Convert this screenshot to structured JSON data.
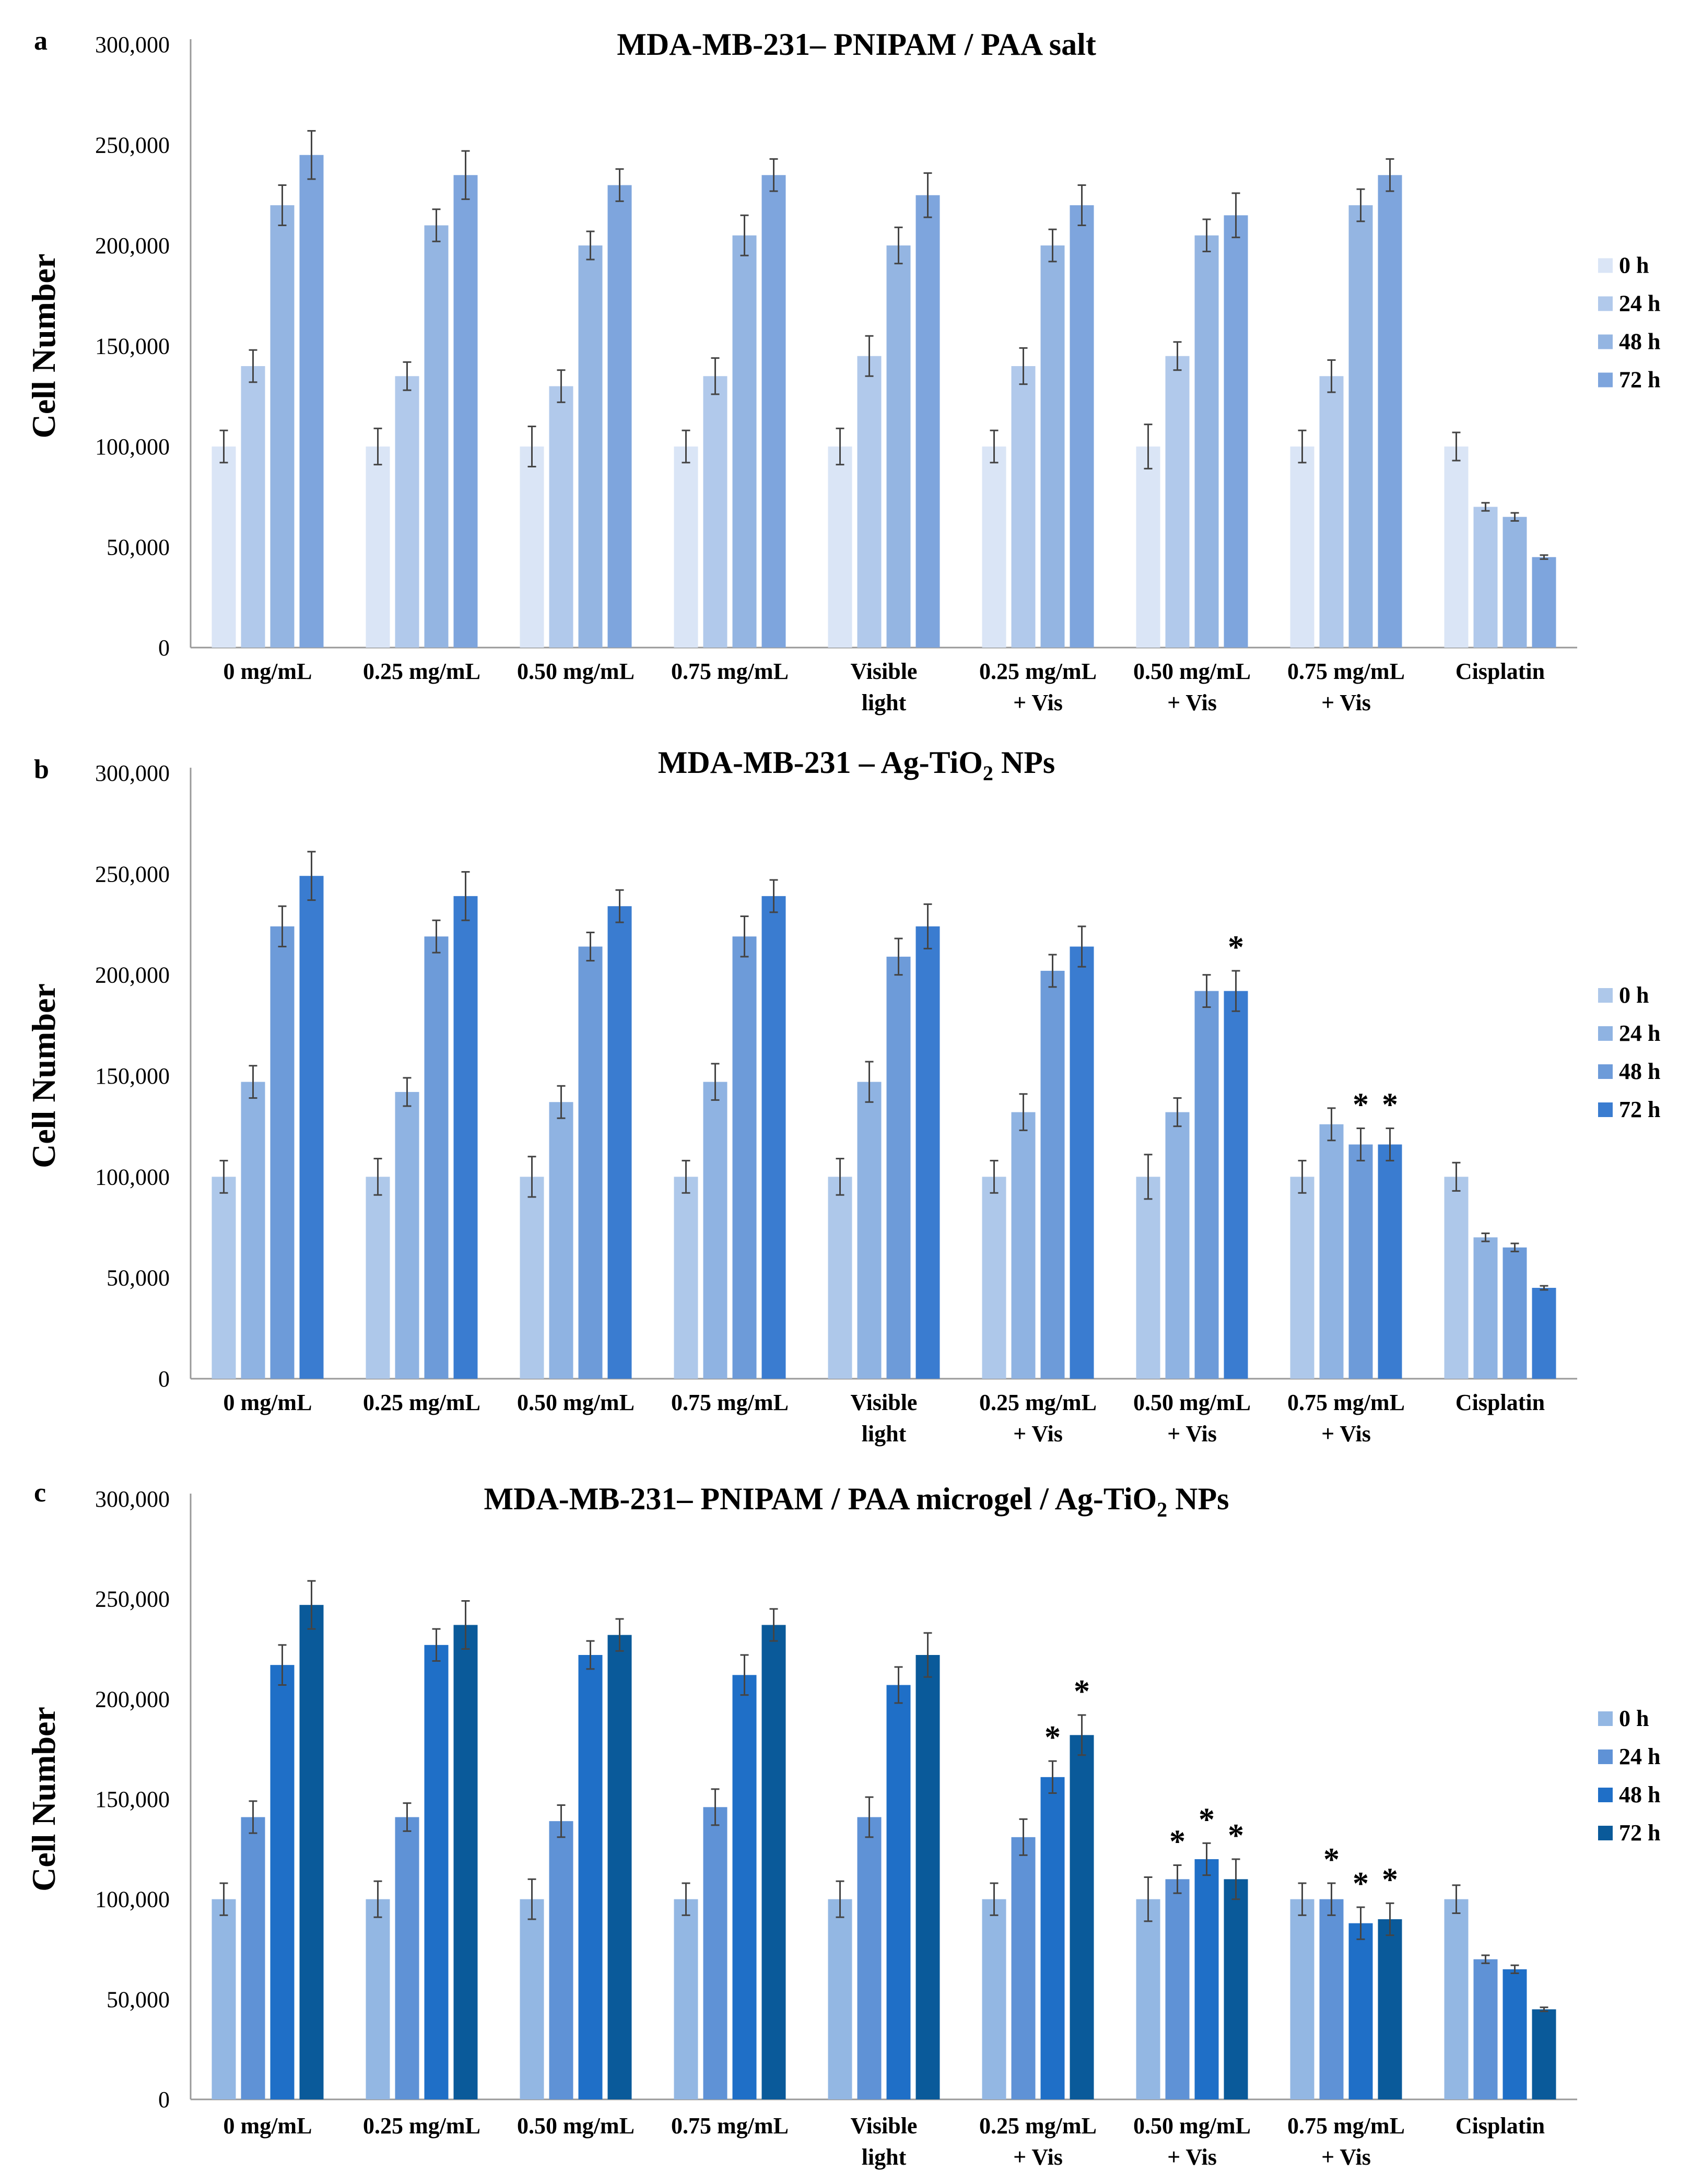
{
  "figure": {
    "panels": [
      {
        "letter": "a",
        "title_main": "MDA-MB-231– PNIPAM / PAA salt",
        "title_sub": "",
        "title_post": "",
        "ylabel": "Cell Number",
        "legend": [
          "0 h",
          "24 h",
          "48 h",
          "72 h"
        ],
        "colors": {
          "series": [
            "#dae5f6",
            "#b1c9eb",
            "#94b5e2",
            "#7ea5dd"
          ],
          "error": "#444444",
          "axis": "#999999"
        }
      },
      {
        "letter": "b",
        "title_main": "MDA-MB-231 – Ag-TiO",
        "title_sub": "2",
        "title_post": " NPs",
        "ylabel": "Cell Number",
        "legend": [
          "0 h",
          "24 h",
          "48 h",
          "72 h"
        ],
        "colors": {
          "series": [
            "#aec8ea",
            "#8fb3e2",
            "#6d9bd9",
            "#3a7cd0"
          ],
          "error": "#444444",
          "axis": "#999999"
        }
      },
      {
        "letter": "c",
        "title_main": "MDA-MB-231– PNIPAM / PAA microgel / Ag-TiO",
        "title_sub": "2",
        "title_post": " NPs",
        "ylabel": "Cell Number",
        "legend": [
          "0 h",
          "24 h",
          "48 h",
          "72 h"
        ],
        "colors": {
          "series": [
            "#93b7e3",
            "#5f92d6",
            "#1f6fc7",
            "#0a5a9a"
          ],
          "error": "#444444",
          "axis": "#999999"
        }
      }
    ]
  },
  "chart_data": [
    {
      "type": "bar",
      "title": "MDA-MB-231– PNIPAM / PAA salt",
      "xlabel": "",
      "ylabel": "Cell Number",
      "ylim": [
        0,
        300000
      ],
      "yticks": [
        "0",
        "50,000",
        "100,000",
        "150,000",
        "200,000",
        "250,000",
        "300,000"
      ],
      "categories": [
        [
          "0 mg/mL"
        ],
        [
          "0.25 mg/mL"
        ],
        [
          "0.50 mg/mL"
        ],
        [
          "0.75 mg/mL"
        ],
        [
          "Visible",
          "light"
        ],
        [
          "0.25 mg/mL",
          "+ Vis"
        ],
        [
          "0.50 mg/mL",
          "+ Vis"
        ],
        [
          "0.75 mg/mL",
          "+ Vis"
        ],
        [
          "Cisplatin"
        ]
      ],
      "series": [
        {
          "name": "0 h",
          "values": [
            100000,
            100000,
            100000,
            100000,
            100000,
            100000,
            100000,
            100000,
            100000
          ],
          "errors": [
            8000,
            9000,
            10000,
            8000,
            9000,
            8000,
            11000,
            8000,
            7000
          ]
        },
        {
          "name": "24 h",
          "values": [
            140000,
            135000,
            130000,
            135000,
            145000,
            140000,
            145000,
            135000,
            70000
          ],
          "errors": [
            8000,
            7000,
            8000,
            9000,
            10000,
            9000,
            7000,
            8000,
            2000
          ]
        },
        {
          "name": "48 h",
          "values": [
            220000,
            210000,
            200000,
            205000,
            200000,
            200000,
            205000,
            220000,
            65000
          ],
          "errors": [
            10000,
            8000,
            7000,
            10000,
            9000,
            8000,
            8000,
            8000,
            2000
          ]
        },
        {
          "name": "72 h",
          "values": [
            245000,
            235000,
            230000,
            235000,
            225000,
            220000,
            215000,
            235000,
            45000
          ],
          "errors": [
            12000,
            12000,
            8000,
            8000,
            11000,
            10000,
            11000,
            8000,
            1000
          ]
        }
      ],
      "significance": [
        [],
        [],
        [],
        [],
        [],
        [],
        [],
        [],
        []
      ],
      "legend_position": "right"
    },
    {
      "type": "bar",
      "title": "MDA-MB-231 – Ag-TiO2 NPs",
      "xlabel": "",
      "ylabel": "Cell Number",
      "ylim": [
        0,
        300000
      ],
      "yticks": [
        "0",
        "50,000",
        "100,000",
        "150,000",
        "200,000",
        "250,000",
        "300,000"
      ],
      "categories": [
        [
          "0 mg/mL"
        ],
        [
          "0.25 mg/mL"
        ],
        [
          "0.50 mg/mL"
        ],
        [
          "0.75 mg/mL"
        ],
        [
          "Visible",
          "light"
        ],
        [
          "0.25 mg/mL",
          "+ Vis"
        ],
        [
          "0.50 mg/mL",
          "+ Vis"
        ],
        [
          "0.75 mg/mL",
          "+ Vis"
        ],
        [
          "Cisplatin"
        ]
      ],
      "series": [
        {
          "name": "0 h",
          "values": [
            100000,
            100000,
            100000,
            100000,
            100000,
            100000,
            100000,
            100000,
            100000
          ],
          "errors": [
            8000,
            9000,
            10000,
            8000,
            9000,
            8000,
            11000,
            8000,
            7000
          ]
        },
        {
          "name": "24 h",
          "values": [
            147000,
            142000,
            137000,
            147000,
            147000,
            132000,
            132000,
            126000,
            70000
          ],
          "errors": [
            8000,
            7000,
            8000,
            9000,
            10000,
            9000,
            7000,
            8000,
            2000
          ]
        },
        {
          "name": "48 h",
          "values": [
            224000,
            219000,
            214000,
            219000,
            209000,
            202000,
            192000,
            116000,
            65000
          ],
          "errors": [
            10000,
            8000,
            7000,
            10000,
            9000,
            8000,
            8000,
            8000,
            2000
          ]
        },
        {
          "name": "72 h",
          "values": [
            249000,
            239000,
            234000,
            239000,
            224000,
            214000,
            192000,
            116000,
            45000
          ],
          "errors": [
            12000,
            12000,
            8000,
            8000,
            11000,
            10000,
            10000,
            8000,
            1000
          ]
        }
      ],
      "significance": [
        [],
        [],
        [],
        [],
        [],
        [],
        [
          3
        ],
        [
          2,
          3
        ],
        []
      ],
      "legend_position": "right"
    },
    {
      "type": "bar",
      "title": "MDA-MB-231– PNIPAM / PAA microgel / Ag-TiO2 NPs",
      "xlabel": "",
      "ylabel": "Cell Number",
      "ylim": [
        0,
        300000
      ],
      "yticks": [
        "0",
        "50,000",
        "100,000",
        "150,000",
        "200,000",
        "250,000",
        "300,000"
      ],
      "categories": [
        [
          "0 mg/mL"
        ],
        [
          "0.25 mg/mL"
        ],
        [
          "0.50 mg/mL"
        ],
        [
          "0.75 mg/mL"
        ],
        [
          "Visible",
          "light"
        ],
        [
          "0.25 mg/mL",
          "+ Vis"
        ],
        [
          "0.50 mg/mL",
          "+ Vis"
        ],
        [
          "0.75 mg/mL",
          "+ Vis"
        ],
        [
          "Cisplatin"
        ]
      ],
      "series": [
        {
          "name": "0 h",
          "values": [
            100000,
            100000,
            100000,
            100000,
            100000,
            100000,
            100000,
            100000,
            100000
          ],
          "errors": [
            8000,
            9000,
            10000,
            8000,
            9000,
            8000,
            11000,
            8000,
            7000
          ]
        },
        {
          "name": "24 h",
          "values": [
            141000,
            141000,
            139000,
            146000,
            141000,
            131000,
            110000,
            100000,
            70000
          ],
          "errors": [
            8000,
            7000,
            8000,
            9000,
            10000,
            9000,
            7000,
            8000,
            2000
          ]
        },
        {
          "name": "48 h",
          "values": [
            217000,
            227000,
            222000,
            212000,
            207000,
            161000,
            120000,
            88000,
            65000
          ],
          "errors": [
            10000,
            8000,
            7000,
            10000,
            9000,
            8000,
            8000,
            8000,
            2000
          ]
        },
        {
          "name": "72 h",
          "values": [
            247000,
            237000,
            232000,
            237000,
            222000,
            182000,
            110000,
            90000,
            45000
          ],
          "errors": [
            12000,
            12000,
            8000,
            8000,
            11000,
            10000,
            10000,
            8000,
            1000
          ]
        }
      ],
      "significance": [
        [],
        [],
        [],
        [],
        [],
        [
          2,
          3
        ],
        [
          1,
          2,
          3
        ],
        [
          1,
          2,
          3
        ],
        []
      ],
      "legend_position": "right"
    }
  ]
}
